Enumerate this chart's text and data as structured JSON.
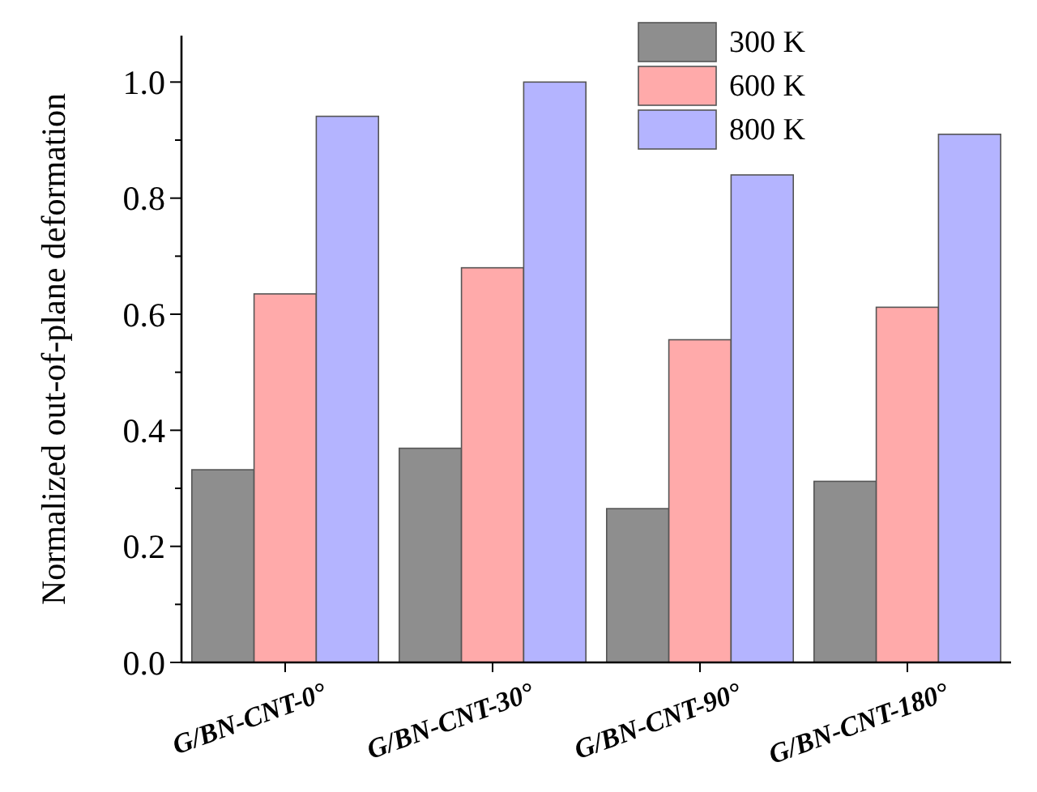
{
  "chart_data": {
    "type": "bar",
    "ylabel": "Normalized out-of-plane deformation",
    "categories": [
      "G/BN-CNT-0°",
      "G/BN-CNT-30°",
      "G/BN-CNT-90°",
      "G/BN-CNT-180°"
    ],
    "series": [
      {
        "name": "300 K",
        "color": "#8e8e8e",
        "values": [
          0.332,
          0.369,
          0.265,
          0.312
        ]
      },
      {
        "name": "600 K",
        "color": "#ffaaaa",
        "values": [
          0.635,
          0.68,
          0.556,
          0.612
        ]
      },
      {
        "name": "800 K",
        "color": "#b4b4ff",
        "values": [
          0.941,
          1.0,
          0.84,
          0.91
        ]
      }
    ],
    "ylim": [
      0,
      1.08
    ],
    "yticks": [
      {
        "value": 0,
        "label": "0.0"
      },
      {
        "value": 0.1,
        "label": null
      },
      {
        "value": 0.2,
        "label": "0.2"
      },
      {
        "value": 0.3,
        "label": null
      },
      {
        "value": 0.4,
        "label": "0.4"
      },
      {
        "value": 0.5,
        "label": null
      },
      {
        "value": 0.6,
        "label": "0.6"
      },
      {
        "value": 0.7,
        "label": null
      },
      {
        "value": 0.8,
        "label": "0.8"
      },
      {
        "value": 0.9,
        "label": null
      },
      {
        "value": 1.0,
        "label": "1.0"
      }
    ],
    "grid": false,
    "legend": "top right"
  }
}
